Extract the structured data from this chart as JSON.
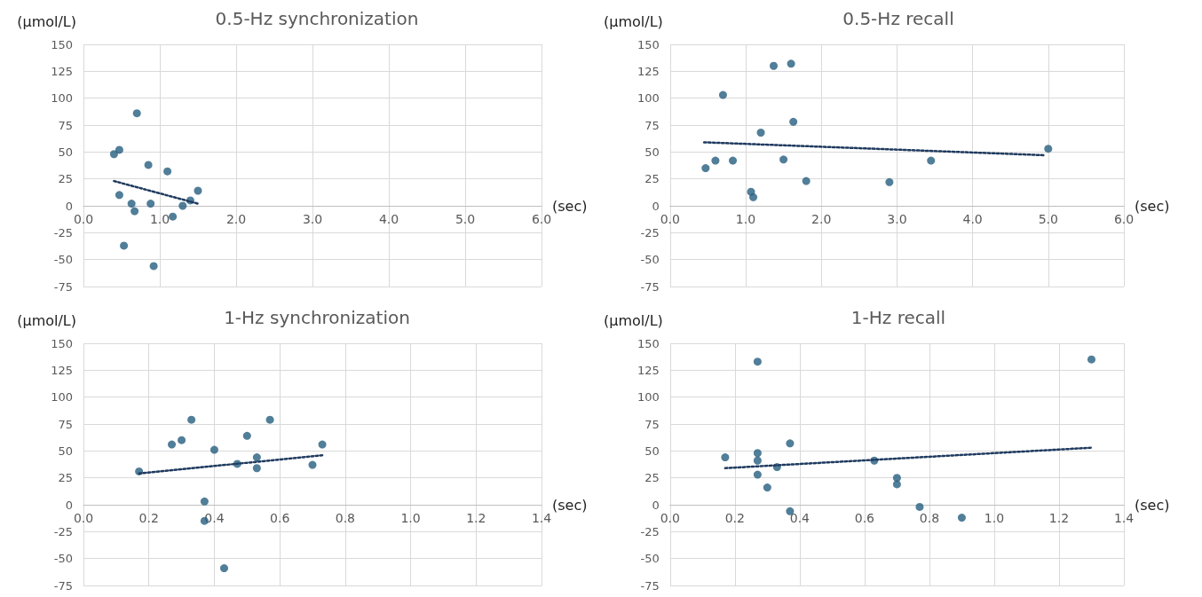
{
  "chart_data": [
    {
      "type": "scatter",
      "title": "0.5-Hz synchronization",
      "xlabel": "(sec)",
      "ylabel": "(μmol/L)",
      "xlim": [
        0,
        6
      ],
      "xticks": [
        {
          "value": 0,
          "label": "0.0"
        },
        {
          "value": 1,
          "label": "1.0"
        },
        {
          "value": 2,
          "label": "2.0"
        },
        {
          "value": 3,
          "label": "3.0"
        },
        {
          "value": 4,
          "label": "4.0"
        },
        {
          "value": 5,
          "label": "5.0"
        },
        {
          "value": 6,
          "label": "6.0"
        }
      ],
      "ylim": [
        -75,
        150
      ],
      "yticks": [
        -75,
        -50,
        -25,
        0,
        25,
        50,
        75,
        100,
        125,
        150
      ],
      "grid": true,
      "marker": "circle",
      "series": [
        {
          "type": "scatter",
          "color": "#255e7e",
          "x": [
            0.4,
            0.47,
            0.7,
            0.47,
            0.53,
            0.63,
            0.67,
            0.85,
            0.88,
            1.1,
            1.17,
            1.3,
            1.4,
            1.5,
            0.92
          ],
          "values": [
            48,
            52,
            86,
            10,
            -37,
            2,
            -5,
            38,
            2,
            32,
            -10,
            0,
            5,
            14,
            -56
          ]
        },
        {
          "type": "line",
          "color": "#1f3a5f",
          "line_style": "dotted",
          "marker": "none",
          "x": [
            0.4,
            1.5
          ],
          "values": [
            23,
            2
          ]
        }
      ]
    },
    {
      "type": "scatter",
      "title": "0.5-Hz recall",
      "xlabel": "(sec)",
      "ylabel": "(μmol/L)",
      "xlim": [
        0,
        6
      ],
      "xticks": [
        {
          "value": 0,
          "label": "0.0"
        },
        {
          "value": 1,
          "label": "1.0"
        },
        {
          "value": 2,
          "label": "2.0"
        },
        {
          "value": 3,
          "label": "3.0"
        },
        {
          "value": 4,
          "label": "4.0"
        },
        {
          "value": 5,
          "label": "5.0"
        },
        {
          "value": 6,
          "label": "6.0"
        }
      ],
      "ylim": [
        -75,
        150
      ],
      "yticks": [
        -75,
        -50,
        -25,
        0,
        25,
        50,
        75,
        100,
        125,
        150
      ],
      "grid": true,
      "marker": "circle",
      "series": [
        {
          "type": "scatter",
          "color": "#255e7e",
          "x": [
            0.47,
            0.6,
            0.7,
            0.83,
            1.07,
            1.1,
            1.2,
            1.37,
            1.5,
            1.6,
            1.63,
            1.8,
            2.9,
            3.45,
            5.0
          ],
          "values": [
            35,
            42,
            103,
            42,
            13,
            8,
            68,
            130,
            43,
            132,
            78,
            23,
            22,
            42,
            53
          ]
        },
        {
          "type": "line",
          "color": "#1f3a5f",
          "line_style": "dotted",
          "marker": "none",
          "x": [
            0.45,
            4.95
          ],
          "values": [
            59,
            47
          ]
        }
      ]
    },
    {
      "type": "scatter",
      "title": "1-Hz synchronization",
      "xlabel": "(sec)",
      "ylabel": "(μmol/L)",
      "xlim": [
        0,
        1.4
      ],
      "xticks": [
        {
          "value": 0,
          "label": "0.0"
        },
        {
          "value": 0.2,
          "label": "0.2"
        },
        {
          "value": 0.4,
          "label": "0.4"
        },
        {
          "value": 0.6,
          "label": "0.6"
        },
        {
          "value": 0.8,
          "label": "0.8"
        },
        {
          "value": 1,
          "label": "1.0"
        },
        {
          "value": 1.2,
          "label": "1.2"
        },
        {
          "value": 1.4,
          "label": "1.4"
        }
      ],
      "ylim": [
        -75,
        150
      ],
      "yticks": [
        -75,
        -50,
        -25,
        0,
        25,
        50,
        75,
        100,
        125,
        150
      ],
      "grid": true,
      "marker": "circle",
      "series": [
        {
          "type": "scatter",
          "color": "#255e7e",
          "x": [
            0.17,
            0.27,
            0.3,
            0.33,
            0.37,
            0.37,
            0.4,
            0.43,
            0.47,
            0.5,
            0.53,
            0.53,
            0.57,
            0.7,
            0.73
          ],
          "values": [
            31,
            56,
            60,
            79,
            3,
            -15,
            51,
            -59,
            38,
            64,
            44,
            34,
            79,
            37,
            56
          ]
        },
        {
          "type": "line",
          "color": "#1f3a5f",
          "line_style": "dotted",
          "marker": "none",
          "x": [
            0.17,
            0.73
          ],
          "values": [
            29,
            46
          ]
        }
      ]
    },
    {
      "type": "scatter",
      "title": "1-Hz recall",
      "xlabel": "(sec)",
      "ylabel": "(μmol/L)",
      "xlim": [
        0,
        1.4
      ],
      "xticks": [
        {
          "value": 0,
          "label": "0.0"
        },
        {
          "value": 0.2,
          "label": "0.2"
        },
        {
          "value": 0.4,
          "label": "0.4"
        },
        {
          "value": 0.6,
          "label": "0.6"
        },
        {
          "value": 0.8,
          "label": "0.8"
        },
        {
          "value": 1,
          "label": "1.0"
        },
        {
          "value": 1.2,
          "label": "1.2"
        },
        {
          "value": 1.4,
          "label": "1.4"
        }
      ],
      "ylim": [
        -75,
        150
      ],
      "yticks": [
        -75,
        -50,
        -25,
        0,
        25,
        50,
        75,
        100,
        125,
        150
      ],
      "grid": true,
      "marker": "circle",
      "series": [
        {
          "type": "scatter",
          "color": "#255e7e",
          "x": [
            0.17,
            0.27,
            0.27,
            0.27,
            0.27,
            0.3,
            0.33,
            0.37,
            0.37,
            0.63,
            0.7,
            0.7,
            0.77,
            0.9,
            1.3
          ],
          "values": [
            44,
            133,
            48,
            41,
            28,
            16,
            35,
            57,
            -6,
            41,
            25,
            19,
            -2,
            -12,
            135
          ]
        },
        {
          "type": "line",
          "color": "#1f3a5f",
          "line_style": "dotted",
          "marker": "none",
          "x": [
            0.17,
            1.3
          ],
          "values": [
            34,
            53
          ]
        }
      ]
    }
  ]
}
